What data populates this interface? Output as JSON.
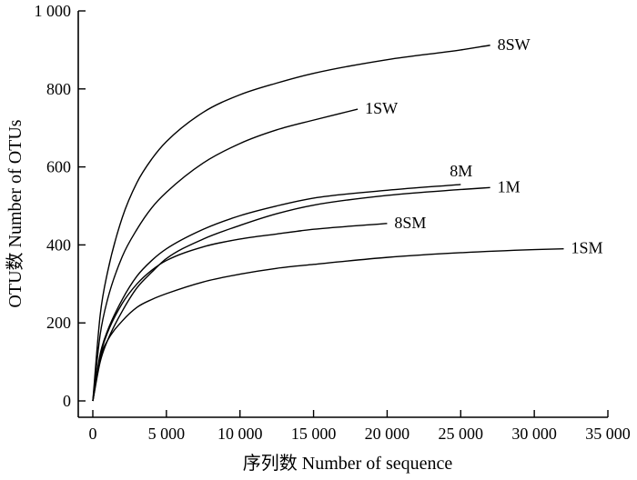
{
  "chart_data": {
    "type": "line",
    "title": "",
    "xlabel": "序列数 Number of sequence",
    "ylabel": "OTU数 Number of OTUs",
    "xlim": [
      0,
      35000
    ],
    "ylim": [
      0,
      1000
    ],
    "x_ticks": [
      0,
      5000,
      10000,
      15000,
      20000,
      25000,
      30000,
      35000
    ],
    "x_tick_labels": [
      "0",
      "5 000",
      "10 000",
      "15 000",
      "20 000",
      "25 000",
      "30 000",
      "35 000"
    ],
    "y_ticks": [
      0,
      200,
      400,
      600,
      800,
      1000
    ],
    "y_tick_labels": [
      "0",
      "200",
      "400",
      "600",
      "800",
      "1 000"
    ],
    "grid": false,
    "legend": "none",
    "series": [
      {
        "name": "8SW",
        "x": [
          0,
          500,
          1000,
          2000,
          3000,
          4000,
          5000,
          7500,
          10000,
          12500,
          15000,
          20000,
          25000,
          27000
        ],
        "values": [
          0,
          220,
          330,
          470,
          560,
          620,
          665,
          740,
          785,
          815,
          840,
          875,
          900,
          912
        ]
      },
      {
        "name": "1SW",
        "x": [
          0,
          500,
          1000,
          2000,
          3000,
          4000,
          5000,
          7500,
          10000,
          12500,
          15000,
          18000
        ],
        "values": [
          0,
          170,
          260,
          370,
          440,
          495,
          535,
          610,
          660,
          695,
          720,
          748
        ]
      },
      {
        "name": "8M",
        "x": [
          0,
          500,
          1000,
          2000,
          3000,
          4000,
          5000,
          7500,
          10000,
          12500,
          15000,
          20000,
          25000
        ],
        "values": [
          0,
          120,
          180,
          260,
          320,
          360,
          390,
          440,
          475,
          500,
          520,
          540,
          555
        ]
      },
      {
        "name": "1M",
        "x": [
          0,
          500,
          1000,
          2000,
          3000,
          4000,
          5000,
          7500,
          10000,
          12500,
          15000,
          20000,
          25000,
          27000
        ],
        "values": [
          0,
          100,
          155,
          230,
          290,
          330,
          365,
          415,
          450,
          480,
          502,
          527,
          542,
          547
        ]
      },
      {
        "name": "8SM",
        "x": [
          0,
          500,
          1000,
          2000,
          3000,
          4000,
          5000,
          7500,
          10000,
          12500,
          15000,
          20000
        ],
        "values": [
          0,
          115,
          175,
          250,
          300,
          335,
          360,
          395,
          415,
          428,
          440,
          455
        ]
      },
      {
        "name": "1SM",
        "x": [
          0,
          500,
          1000,
          2000,
          3000,
          4000,
          5000,
          7500,
          10000,
          12500,
          15000,
          20000,
          25000,
          30000,
          32000
        ],
        "values": [
          0,
          110,
          155,
          205,
          240,
          260,
          275,
          305,
          325,
          340,
          350,
          368,
          380,
          388,
          390
        ]
      }
    ]
  }
}
